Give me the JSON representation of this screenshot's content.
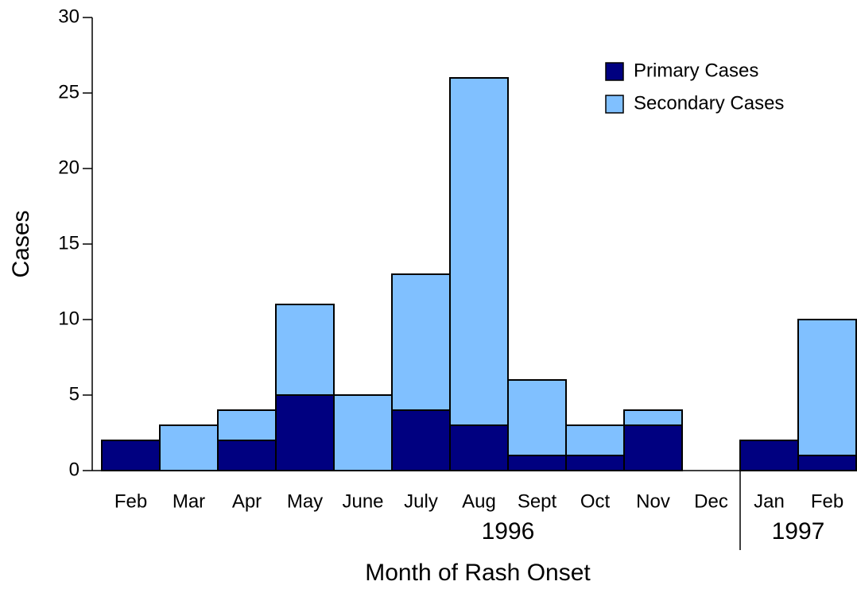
{
  "chart_data": {
    "type": "stacked_bar",
    "x_label": "Month of Rash Onset",
    "y_label": "Cases",
    "categories": [
      "Feb",
      "Mar",
      "Apr",
      "May",
      "June",
      "July",
      "Aug",
      "Sept",
      "Oct",
      "Nov",
      "Dec",
      "Jan",
      "Feb"
    ],
    "groups": [
      {
        "label": "1996",
        "span": 11
      },
      {
        "label": "1997",
        "span": 2
      }
    ],
    "series": [
      {
        "name": "Primary Cases",
        "color": "#000080",
        "values": [
          2,
          0,
          2,
          5,
          0,
          4,
          3,
          1,
          1,
          3,
          0,
          2,
          1
        ]
      },
      {
        "name": "Secondary Cases",
        "color": "#80c0ff",
        "values": [
          0,
          3,
          2,
          6,
          5,
          9,
          23,
          5,
          2,
          1,
          0,
          0,
          9
        ]
      }
    ],
    "ylim": [
      0,
      30
    ],
    "yticks": [
      0,
      5,
      10,
      15,
      20,
      25,
      30
    ],
    "legend": "upper right"
  }
}
